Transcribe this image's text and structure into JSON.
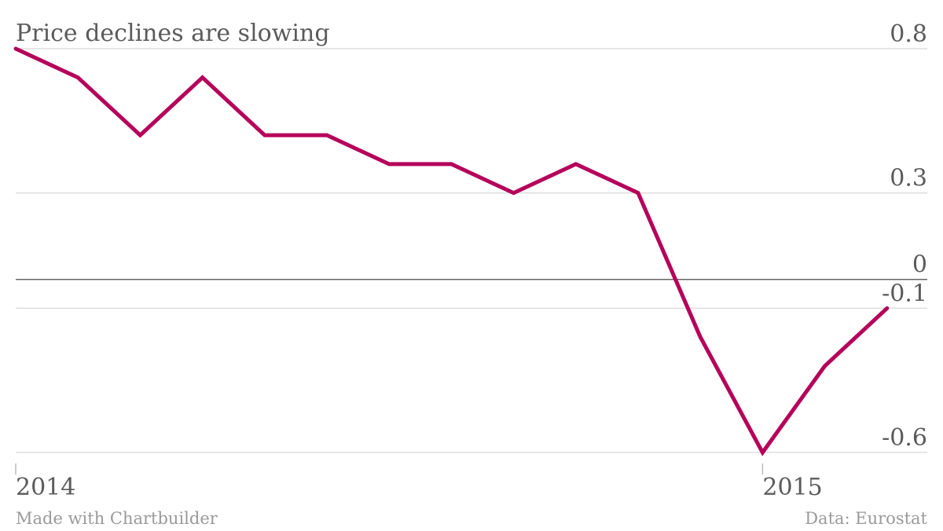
{
  "chart_data": {
    "type": "line",
    "title": "Price declines are slowing",
    "xlabel": "",
    "ylabel": "",
    "x": [
      "2014-01",
      "2014-02",
      "2014-03",
      "2014-04",
      "2014-05",
      "2014-06",
      "2014-07",
      "2014-08",
      "2014-09",
      "2014-10",
      "2014-11",
      "2014-12",
      "2015-01",
      "2015-02",
      "2015-03"
    ],
    "series": [
      {
        "values": [
          0.8,
          0.7,
          0.5,
          0.7,
          0.5,
          0.5,
          0.4,
          0.4,
          0.3,
          0.4,
          0.3,
          -0.2,
          -0.6,
          -0.3,
          -0.1
        ]
      }
    ],
    "ylim": [
      -0.6,
      0.8
    ],
    "yticks": [
      {
        "value": 0.8,
        "label": "0.8"
      },
      {
        "value": 0.3,
        "label": "0.3"
      },
      {
        "value": 0,
        "label": "0"
      },
      {
        "value": -0.1,
        "label": "-0.1"
      },
      {
        "value": -0.6,
        "label": "-0.6"
      }
    ],
    "xticks": [
      {
        "x": "2014-01",
        "label": "2014"
      },
      {
        "x": "2015-01",
        "label": "2015"
      }
    ],
    "grid": true,
    "legend": "none",
    "line_color": "#b5005a",
    "grid_color": "#dddddd",
    "zero_line_color": "#666666"
  },
  "footer": {
    "credit": "Made with Chartbuilder",
    "source": "Data: Eurostat"
  }
}
